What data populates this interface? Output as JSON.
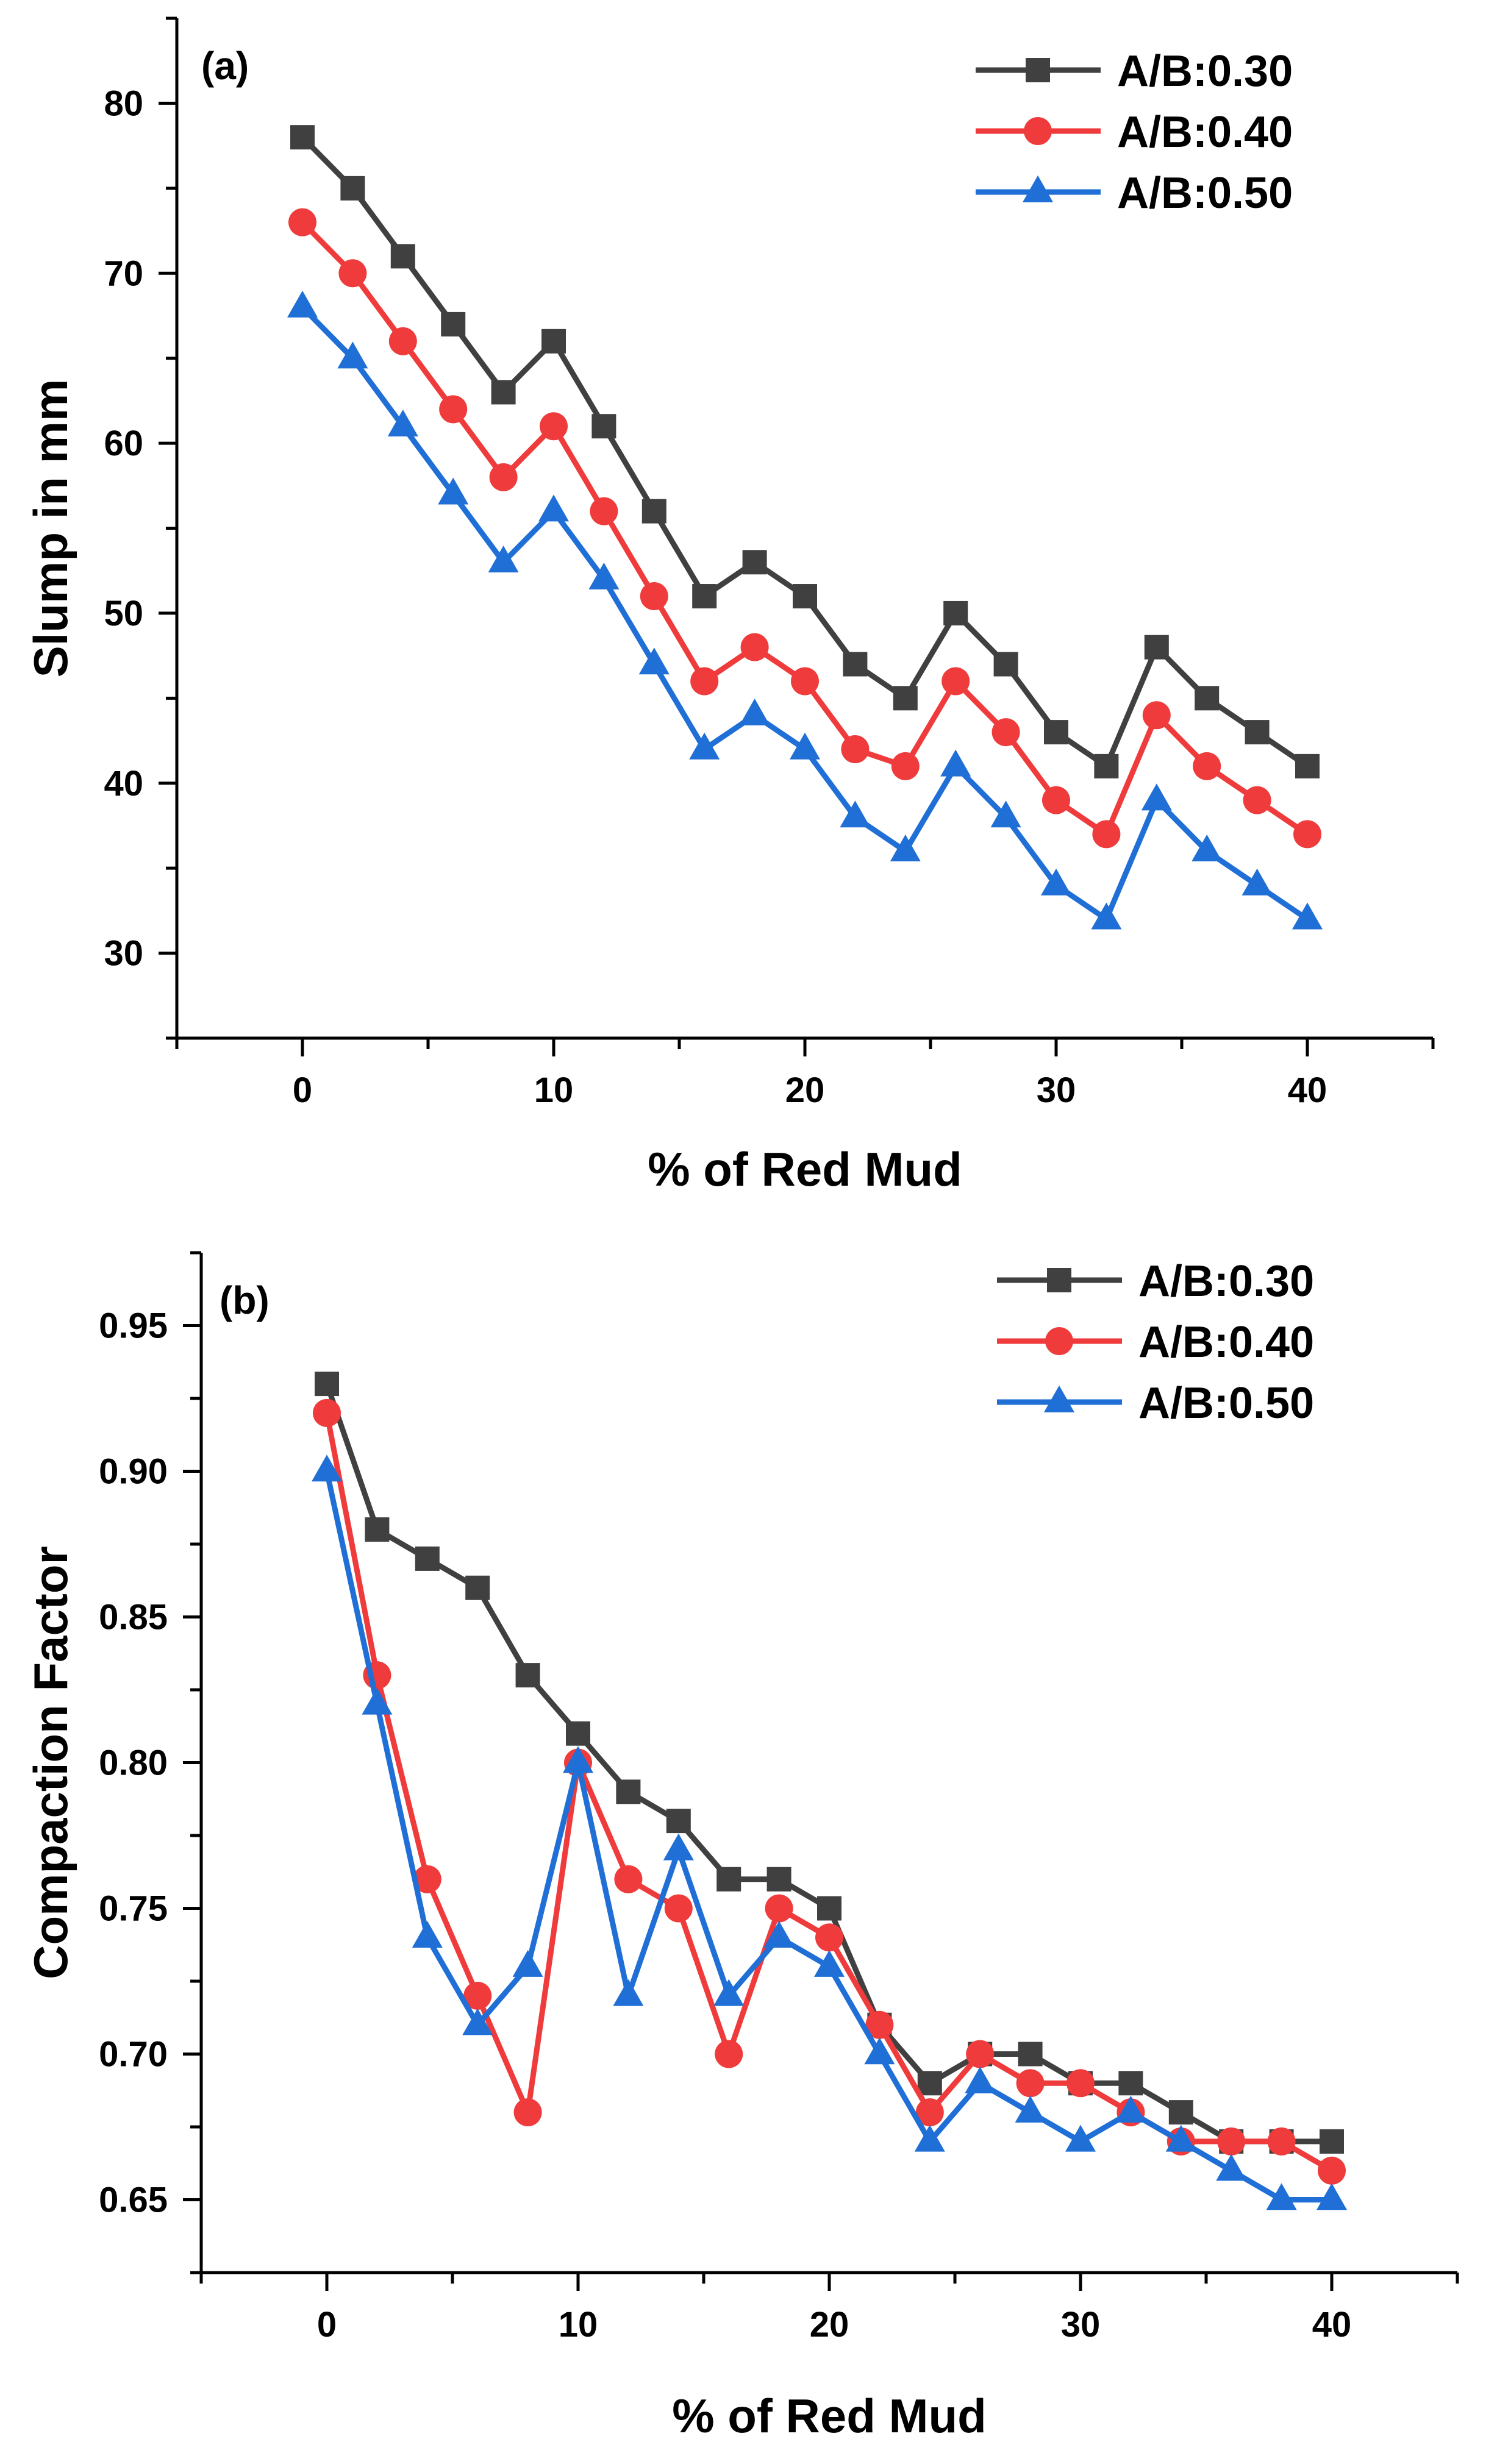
{
  "colors": {
    "A/B:0.30": "#404040",
    "A/B:0.40": "#ef3b3b",
    "A/B:0.50": "#1f6fd6"
  },
  "chart_data": [
    {
      "type": "line",
      "panel_label": "(a)",
      "xlabel": "% of Red Mud",
      "ylabel": "Slump in mm",
      "xlim": [
        -5,
        45
      ],
      "ylim": [
        25,
        85
      ],
      "xticks": [
        "0",
        "10",
        "20",
        "30",
        "40"
      ],
      "yticks": [
        "30",
        "40",
        "50",
        "60",
        "70",
        "80"
      ],
      "legend_position": "top-right",
      "x": [
        0,
        2,
        4,
        6,
        8,
        10,
        12,
        14,
        16,
        18,
        20,
        22,
        24,
        26,
        28,
        30,
        32,
        34,
        36,
        38,
        40
      ],
      "series": [
        {
          "name": "A/B:0.30",
          "marker": "square",
          "values": [
            78,
            75,
            71,
            67,
            63,
            66,
            61,
            56,
            51,
            53,
            51,
            47,
            45,
            50,
            47,
            43,
            41,
            48,
            45,
            43,
            41
          ]
        },
        {
          "name": "A/B:0.40",
          "marker": "circle",
          "values": [
            73,
            70,
            66,
            62,
            58,
            61,
            56,
            51,
            46,
            48,
            46,
            42,
            41,
            46,
            43,
            39,
            37,
            44,
            41,
            39,
            37
          ]
        },
        {
          "name": "A/B:0.50",
          "marker": "triangle",
          "values": [
            68,
            65,
            61,
            57,
            53,
            56,
            52,
            47,
            42,
            44,
            42,
            38,
            36,
            41,
            38,
            34,
            32,
            39,
            36,
            34,
            32
          ]
        }
      ]
    },
    {
      "type": "line",
      "panel_label": "(b)",
      "xlabel": "% of Red Mud",
      "ylabel": "Compaction Factor",
      "xlim": [
        -5,
        45
      ],
      "ylim": [
        0.625,
        0.975
      ],
      "xticks": [
        "0",
        "10",
        "20",
        "30",
        "40"
      ],
      "yticks": [
        "0.65",
        "0.70",
        "0.75",
        "0.80",
        "0.85",
        "0.90",
        "0.95"
      ],
      "legend_position": "top-right",
      "x": [
        0,
        2,
        4,
        6,
        8,
        10,
        12,
        14,
        16,
        18,
        20,
        22,
        24,
        26,
        28,
        30,
        32,
        34,
        36,
        38,
        40
      ],
      "series": [
        {
          "name": "A/B:0.30",
          "marker": "square",
          "values": [
            0.93,
            0.88,
            0.87,
            0.86,
            0.83,
            0.81,
            0.79,
            0.78,
            0.76,
            0.76,
            0.75,
            0.71,
            0.69,
            0.7,
            0.7,
            0.69,
            0.69,
            0.68,
            0.67,
            0.67,
            0.67
          ]
        },
        {
          "name": "A/B:0.40",
          "marker": "circle",
          "values": [
            0.92,
            0.83,
            0.76,
            0.72,
            0.68,
            0.8,
            0.76,
            0.75,
            0.7,
            0.75,
            0.74,
            0.71,
            0.68,
            0.7,
            0.69,
            0.69,
            0.68,
            0.67,
            0.67,
            0.67,
            0.66
          ]
        },
        {
          "name": "A/B:0.50",
          "marker": "triangle",
          "values": [
            0.9,
            0.82,
            0.74,
            0.71,
            0.73,
            0.8,
            0.72,
            0.77,
            0.72,
            0.74,
            0.73,
            0.7,
            0.67,
            0.69,
            0.68,
            0.67,
            0.68,
            0.67,
            0.66,
            0.65,
            0.65
          ]
        }
      ]
    }
  ]
}
